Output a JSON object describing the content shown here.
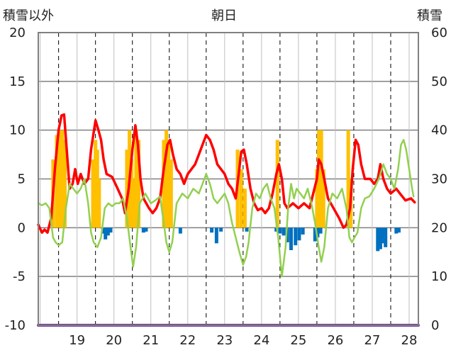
{
  "header": {
    "left_axis_title": "積雪以外",
    "center_title": "朝日",
    "right_axis_title": "積雪"
  },
  "chart_data": {
    "type": "line",
    "x_tick_labels": [
      "19",
      "20",
      "21",
      "22",
      "23",
      "24",
      "25",
      "26",
      "27",
      "28"
    ],
    "y_left": {
      "ticks": [
        "20",
        "15",
        "10",
        "5",
        "0",
        "-5",
        "-10"
      ],
      "range": [
        -10,
        20
      ]
    },
    "y_right": {
      "ticks": [
        "60",
        "50",
        "40",
        "30",
        "20",
        "10",
        "0"
      ],
      "range": [
        0,
        60
      ]
    },
    "x_range": [
      18.45,
      28.75
    ],
    "grid": true,
    "colors": {
      "frame": "#808080",
      "red_line": "#ff0000",
      "green_line": "#92d050",
      "positive_bars": "#ffc000",
      "negative_bars": "#0070c0",
      "bottom_line": "#7030a0"
    },
    "series": [
      {
        "type": "bar",
        "axis": "left",
        "color": "#ffc000",
        "points": [
          [
            18.85,
            7
          ],
          [
            18.95,
            9.5
          ],
          [
            19.03,
            10
          ],
          [
            19.1,
            10
          ],
          [
            19.17,
            9
          ],
          [
            19.93,
            7
          ],
          [
            20.0,
            9
          ],
          [
            20.05,
            8
          ],
          [
            20.1,
            5
          ],
          [
            20.85,
            8
          ],
          [
            20.92,
            10
          ],
          [
            20.98,
            7
          ],
          [
            21.03,
            5
          ],
          [
            21.1,
            10
          ],
          [
            21.17,
            9
          ],
          [
            21.85,
            9
          ],
          [
            21.92,
            10
          ],
          [
            21.98,
            9
          ],
          [
            22.05,
            7
          ],
          [
            23.85,
            8
          ],
          [
            23.95,
            6
          ],
          [
            24.05,
            4
          ],
          [
            24.93,
            9
          ],
          [
            26.0,
            6
          ],
          [
            26.05,
            10
          ],
          [
            26.12,
            10
          ],
          [
            26.18,
            6
          ],
          [
            26.85,
            10
          ],
          [
            26.92,
            5
          ]
        ]
      },
      {
        "type": "bar",
        "axis": "left",
        "color": "#0070c0",
        "points": [
          [
            20.2,
            -0.6
          ],
          [
            20.27,
            -1.2
          ],
          [
            20.34,
            -0.8
          ],
          [
            20.41,
            -0.5
          ],
          [
            21.3,
            -0.5
          ],
          [
            21.37,
            -0.4
          ],
          [
            22.3,
            -0.6
          ],
          [
            23.15,
            -0.5
          ],
          [
            23.28,
            -1.6
          ],
          [
            23.4,
            -0.4
          ],
          [
            24.1,
            -0.4
          ],
          [
            24.9,
            -0.4
          ],
          [
            25.0,
            -0.6
          ],
          [
            25.1,
            -0.8
          ],
          [
            25.2,
            -1.5
          ],
          [
            25.3,
            -2.3
          ],
          [
            25.42,
            -1.8
          ],
          [
            25.52,
            -1.3
          ],
          [
            25.62,
            -0.7
          ],
          [
            25.95,
            -1.4
          ],
          [
            26.02,
            -1.0
          ],
          [
            26.1,
            -0.6
          ],
          [
            27.65,
            -2.4
          ],
          [
            27.72,
            -2.2
          ],
          [
            27.79,
            -1.6
          ],
          [
            27.86,
            -2.0
          ],
          [
            28.15,
            -0.6
          ],
          [
            28.22,
            -0.5
          ]
        ]
      },
      {
        "type": "line",
        "axis": "left",
        "color": "#ff0000",
        "points": [
          [
            18.45,
            0.3
          ],
          [
            18.55,
            -0.5
          ],
          [
            18.62,
            -0.2
          ],
          [
            18.7,
            -0.5
          ],
          [
            18.8,
            1.0
          ],
          [
            18.9,
            6.0
          ],
          [
            19.0,
            10.0
          ],
          [
            19.08,
            11.5
          ],
          [
            19.15,
            11.6
          ],
          [
            19.22,
            8.0
          ],
          [
            19.3,
            4.0
          ],
          [
            19.38,
            4.5
          ],
          [
            19.45,
            6.0
          ],
          [
            19.52,
            4.5
          ],
          [
            19.6,
            5.5
          ],
          [
            19.7,
            4.5
          ],
          [
            19.8,
            5.0
          ],
          [
            19.88,
            8.0
          ],
          [
            20.0,
            11.0
          ],
          [
            20.08,
            10.0
          ],
          [
            20.15,
            9.0
          ],
          [
            20.22,
            7.0
          ],
          [
            20.3,
            5.5
          ],
          [
            20.45,
            5.2
          ],
          [
            20.6,
            4.0
          ],
          [
            20.72,
            3.0
          ],
          [
            20.8,
            1.5
          ],
          [
            20.9,
            4.0
          ],
          [
            21.0,
            8.0
          ],
          [
            21.08,
            10.5
          ],
          [
            21.15,
            8.5
          ],
          [
            21.22,
            5.0
          ],
          [
            21.3,
            3.0
          ],
          [
            21.45,
            2.0
          ],
          [
            21.55,
            1.5
          ],
          [
            21.65,
            2.0
          ],
          [
            21.75,
            3.0
          ],
          [
            21.85,
            6.0
          ],
          [
            21.95,
            8.5
          ],
          [
            22.02,
            9.0
          ],
          [
            22.1,
            7.5
          ],
          [
            22.2,
            6.0
          ],
          [
            22.3,
            5.5
          ],
          [
            22.4,
            4.5
          ],
          [
            22.5,
            5.5
          ],
          [
            22.6,
            6.0
          ],
          [
            22.7,
            6.5
          ],
          [
            22.8,
            7.5
          ],
          [
            22.9,
            8.5
          ],
          [
            23.0,
            9.5
          ],
          [
            23.1,
            9.0
          ],
          [
            23.2,
            8.0
          ],
          [
            23.3,
            6.5
          ],
          [
            23.4,
            6.0
          ],
          [
            23.5,
            5.5
          ],
          [
            23.6,
            4.5
          ],
          [
            23.7,
            4.0
          ],
          [
            23.8,
            3.0
          ],
          [
            23.88,
            5.5
          ],
          [
            23.95,
            7.8
          ],
          [
            24.02,
            8.0
          ],
          [
            24.1,
            6.5
          ],
          [
            24.2,
            4.0
          ],
          [
            24.3,
            2.5
          ],
          [
            24.4,
            1.8
          ],
          [
            24.5,
            2.0
          ],
          [
            24.6,
            1.5
          ],
          [
            24.7,
            2.0
          ],
          [
            24.8,
            3.5
          ],
          [
            24.9,
            5.5
          ],
          [
            24.97,
            6.5
          ],
          [
            25.05,
            5.0
          ],
          [
            25.12,
            2.5
          ],
          [
            25.2,
            2.0
          ],
          [
            25.35,
            2.5
          ],
          [
            25.5,
            2.0
          ],
          [
            25.65,
            2.5
          ],
          [
            25.8,
            2.0
          ],
          [
            25.9,
            3.5
          ],
          [
            26.0,
            5.0
          ],
          [
            26.05,
            7.0
          ],
          [
            26.12,
            6.5
          ],
          [
            26.2,
            5.0
          ],
          [
            26.3,
            3.0
          ],
          [
            26.45,
            2.0
          ],
          [
            26.6,
            1.0
          ],
          [
            26.72,
            0.0
          ],
          [
            26.8,
            0.3
          ],
          [
            26.9,
            2.0
          ],
          [
            26.97,
            6.0
          ],
          [
            27.05,
            9.0
          ],
          [
            27.12,
            8.5
          ],
          [
            27.2,
            6.5
          ],
          [
            27.3,
            5.0
          ],
          [
            27.45,
            5.0
          ],
          [
            27.55,
            4.5
          ],
          [
            27.65,
            5.0
          ],
          [
            27.72,
            6.5
          ],
          [
            27.8,
            5.0
          ],
          [
            27.9,
            4.0
          ],
          [
            28.0,
            3.5
          ],
          [
            28.15,
            4.0
          ],
          [
            28.25,
            3.5
          ],
          [
            28.4,
            2.8
          ],
          [
            28.55,
            3.0
          ],
          [
            28.6,
            2.8
          ],
          [
            28.65,
            2.6
          ]
        ]
      },
      {
        "type": "line",
        "axis": "left",
        "color": "#92d050",
        "points": [
          [
            18.45,
            2.5
          ],
          [
            18.55,
            2.3
          ],
          [
            18.65,
            2.5
          ],
          [
            18.75,
            2.0
          ],
          [
            18.85,
            -1.0
          ],
          [
            18.92,
            -1.5
          ],
          [
            19.0,
            -1.8
          ],
          [
            19.1,
            -1.5
          ],
          [
            19.2,
            2.0
          ],
          [
            19.3,
            4.5
          ],
          [
            19.4,
            4.0
          ],
          [
            19.5,
            3.5
          ],
          [
            19.6,
            4.0
          ],
          [
            19.7,
            5.0
          ],
          [
            19.8,
            2.5
          ],
          [
            19.88,
            -0.5
          ],
          [
            19.95,
            -1.5
          ],
          [
            20.05,
            -2.0
          ],
          [
            20.15,
            -1.0
          ],
          [
            20.25,
            2.0
          ],
          [
            20.35,
            2.5
          ],
          [
            20.45,
            2.2
          ],
          [
            20.55,
            2.5
          ],
          [
            20.65,
            2.5
          ],
          [
            20.75,
            3.0
          ],
          [
            20.85,
            1.0
          ],
          [
            20.95,
            -2.0
          ],
          [
            21.02,
            -4.0
          ],
          [
            21.1,
            -2.0
          ],
          [
            21.2,
            2.5
          ],
          [
            21.35,
            3.5
          ],
          [
            21.5,
            2.5
          ],
          [
            21.62,
            2.8
          ],
          [
            21.75,
            3.2
          ],
          [
            21.85,
            0.5
          ],
          [
            21.92,
            -1.5
          ],
          [
            22.0,
            -2.5
          ],
          [
            22.08,
            -1.5
          ],
          [
            22.2,
            2.5
          ],
          [
            22.35,
            3.5
          ],
          [
            22.5,
            3.0
          ],
          [
            22.65,
            4.0
          ],
          [
            22.8,
            3.5
          ],
          [
            22.9,
            4.5
          ],
          [
            23.0,
            5.5
          ],
          [
            23.1,
            4.5
          ],
          [
            23.2,
            3.0
          ],
          [
            23.3,
            2.5
          ],
          [
            23.4,
            3.0
          ],
          [
            23.5,
            3.5
          ],
          [
            23.6,
            2.5
          ],
          [
            23.7,
            0.5
          ],
          [
            23.8,
            -1.0
          ],
          [
            23.9,
            -2.5
          ],
          [
            24.0,
            -3.8
          ],
          [
            24.08,
            -3.0
          ],
          [
            24.15,
            -1.5
          ],
          [
            24.25,
            2.0
          ],
          [
            24.35,
            3.5
          ],
          [
            24.45,
            3.0
          ],
          [
            24.55,
            4.0
          ],
          [
            24.65,
            4.5
          ],
          [
            24.75,
            3.0
          ],
          [
            24.85,
            2.0
          ],
          [
            24.95,
            -1.0
          ],
          [
            25.05,
            -5.0
          ],
          [
            25.15,
            -2.0
          ],
          [
            25.22,
            2.0
          ],
          [
            25.3,
            4.5
          ],
          [
            25.38,
            3.0
          ],
          [
            25.45,
            4.0
          ],
          [
            25.55,
            3.5
          ],
          [
            25.65,
            3.0
          ],
          [
            25.75,
            4.0
          ],
          [
            25.85,
            2.5
          ],
          [
            25.95,
            0.5
          ],
          [
            26.05,
            -2.0
          ],
          [
            26.12,
            -3.5
          ],
          [
            26.2,
            -2.0
          ],
          [
            26.3,
            2.0
          ],
          [
            26.42,
            3.5
          ],
          [
            26.55,
            3.0
          ],
          [
            26.68,
            4.0
          ],
          [
            26.8,
            2.0
          ],
          [
            26.88,
            -1.0
          ],
          [
            26.95,
            -1.5
          ],
          [
            27.02,
            -1.0
          ],
          [
            27.1,
            -0.5
          ],
          [
            27.2,
            2.0
          ],
          [
            27.3,
            3.0
          ],
          [
            27.42,
            3.2
          ],
          [
            27.55,
            4.0
          ],
          [
            27.68,
            5.0
          ],
          [
            27.8,
            6.5
          ],
          [
            27.9,
            5.5
          ],
          [
            28.0,
            5.0
          ],
          [
            28.1,
            4.0
          ],
          [
            28.2,
            6.0
          ],
          [
            28.28,
            8.5
          ],
          [
            28.35,
            9.0
          ],
          [
            28.42,
            8.0
          ],
          [
            28.5,
            6.0
          ],
          [
            28.58,
            4.0
          ],
          [
            28.62,
            3.2
          ]
        ]
      },
      {
        "type": "line",
        "axis": "right",
        "color": "#7030a0",
        "points": [
          [
            18.45,
            0
          ],
          [
            28.75,
            0
          ]
        ]
      }
    ]
  }
}
